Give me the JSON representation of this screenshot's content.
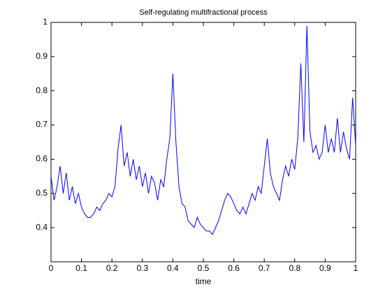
{
  "chart_data": {
    "type": "line",
    "title": "Self-regulating multifractional process",
    "xlabel": "time",
    "x": [
      0,
      0.01,
      0.02,
      0.03,
      0.04,
      0.05,
      0.06,
      0.07,
      0.08,
      0.09,
      0.1,
      0.11,
      0.12,
      0.13,
      0.14,
      0.15,
      0.16,
      0.17,
      0.18,
      0.19,
      0.2,
      0.21,
      0.22,
      0.23,
      0.24,
      0.25,
      0.26,
      0.27,
      0.28,
      0.29,
      0.3,
      0.31,
      0.32,
      0.33,
      0.34,
      0.35,
      0.36,
      0.37,
      0.38,
      0.39,
      0.4,
      0.41,
      0.42,
      0.43,
      0.44,
      0.45,
      0.46,
      0.47,
      0.48,
      0.49,
      0.5,
      0.51,
      0.52,
      0.53,
      0.54,
      0.55,
      0.56,
      0.57,
      0.58,
      0.59,
      0.6,
      0.61,
      0.62,
      0.63,
      0.64,
      0.65,
      0.66,
      0.67,
      0.68,
      0.69,
      0.7,
      0.71,
      0.72,
      0.73,
      0.74,
      0.75,
      0.76,
      0.77,
      0.78,
      0.79,
      0.8,
      0.81,
      0.82,
      0.83,
      0.84,
      0.85,
      0.86,
      0.87,
      0.88,
      0.89,
      0.9,
      0.91,
      0.92,
      0.93,
      0.94,
      0.95,
      0.96,
      0.97,
      0.98,
      0.99,
      1
    ],
    "series": [
      {
        "color": "#0000ff",
        "values": [
          0.55,
          0.48,
          0.52,
          0.58,
          0.5,
          0.56,
          0.48,
          0.52,
          0.47,
          0.5,
          0.46,
          0.44,
          0.43,
          0.43,
          0.44,
          0.46,
          0.45,
          0.47,
          0.48,
          0.5,
          0.49,
          0.52,
          0.63,
          0.7,
          0.58,
          0.62,
          0.55,
          0.6,
          0.54,
          0.58,
          0.52,
          0.56,
          0.5,
          0.55,
          0.53,
          0.48,
          0.54,
          0.52,
          0.6,
          0.66,
          0.85,
          0.65,
          0.52,
          0.47,
          0.46,
          0.42,
          0.41,
          0.4,
          0.43,
          0.41,
          0.4,
          0.39,
          0.39,
          0.38,
          0.4,
          0.42,
          0.45,
          0.48,
          0.5,
          0.49,
          0.47,
          0.45,
          0.44,
          0.46,
          0.44,
          0.47,
          0.5,
          0.48,
          0.52,
          0.5,
          0.58,
          0.66,
          0.56,
          0.52,
          0.5,
          0.48,
          0.54,
          0.58,
          0.55,
          0.6,
          0.57,
          0.66,
          0.88,
          0.65,
          0.99,
          0.68,
          0.62,
          0.64,
          0.6,
          0.62,
          0.7,
          0.62,
          0.66,
          0.62,
          0.72,
          0.62,
          0.68,
          0.63,
          0.6,
          0.78,
          0.64
        ]
      }
    ],
    "xlim": [
      0,
      1
    ],
    "xticks": [
      0,
      0.1,
      0.2,
      0.3,
      0.4,
      0.5,
      0.6,
      0.7,
      0.8,
      0.9,
      1
    ],
    "ylim": [
      0.3,
      1
    ],
    "yticks": [
      0.4,
      0.5,
      0.6,
      0.7,
      0.8,
      0.9,
      1
    ]
  }
}
